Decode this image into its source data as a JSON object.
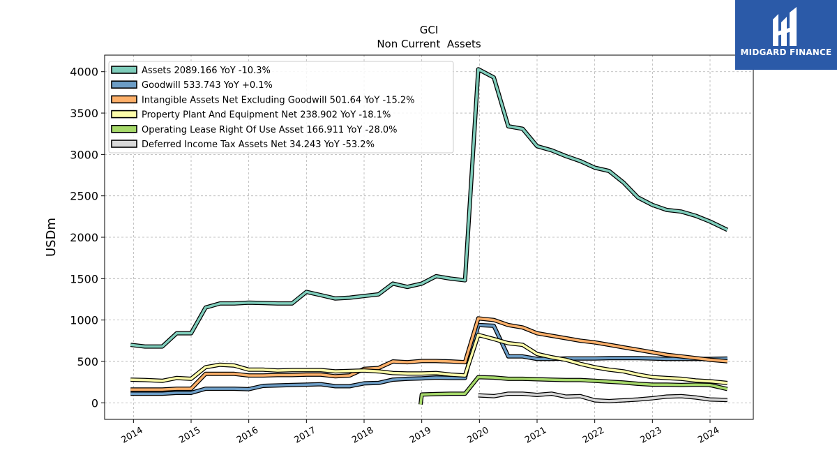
{
  "brand": {
    "name": "MIDGARD FINANCE",
    "bg_color": "#2b5aa8"
  },
  "chart_data": {
    "type": "line",
    "title": "GCI",
    "subtitle": "Non Current  Assets",
    "ylabel": "USDm",
    "xlabel": "",
    "ylim": [
      -200,
      4200
    ],
    "xlim": [
      2013.5,
      2024.75
    ],
    "yticks": [
      0,
      500,
      1000,
      1500,
      2000,
      2500,
      3000,
      3500,
      4000
    ],
    "xticks": [
      2014,
      2015,
      2016,
      2017,
      2018,
      2019,
      2020,
      2021,
      2022,
      2023,
      2024
    ],
    "grid": true,
    "legend_position": "top-left",
    "series": [
      {
        "name": "Assets  2089.166 YoY -10.3%",
        "color": "#7fcdbb",
        "points": [
          [
            2013.95,
            700
          ],
          [
            2014.2,
            680
          ],
          [
            2014.5,
            680
          ],
          [
            2014.75,
            840
          ],
          [
            2015.0,
            840
          ],
          [
            2015.25,
            1150
          ],
          [
            2015.5,
            1200
          ],
          [
            2015.75,
            1200
          ],
          [
            2016.0,
            1210
          ],
          [
            2016.25,
            1205
          ],
          [
            2016.5,
            1200
          ],
          [
            2016.75,
            1200
          ],
          [
            2017.0,
            1340
          ],
          [
            2017.25,
            1300
          ],
          [
            2017.5,
            1260
          ],
          [
            2017.75,
            1270
          ],
          [
            2018.0,
            1290
          ],
          [
            2018.25,
            1310
          ],
          [
            2018.5,
            1440
          ],
          [
            2018.75,
            1400
          ],
          [
            2019.0,
            1440
          ],
          [
            2019.25,
            1530
          ],
          [
            2019.5,
            1500
          ],
          [
            2019.75,
            1480
          ],
          [
            2019.98,
            4030
          ],
          [
            2020.25,
            3930
          ],
          [
            2020.5,
            3340
          ],
          [
            2020.75,
            3310
          ],
          [
            2021.0,
            3100
          ],
          [
            2021.25,
            3050
          ],
          [
            2021.5,
            2980
          ],
          [
            2021.75,
            2920
          ],
          [
            2022.0,
            2840
          ],
          [
            2022.25,
            2800
          ],
          [
            2022.5,
            2660
          ],
          [
            2022.75,
            2480
          ],
          [
            2023.0,
            2390
          ],
          [
            2023.25,
            2330
          ],
          [
            2023.5,
            2310
          ],
          [
            2023.75,
            2260
          ],
          [
            2024.0,
            2190
          ],
          [
            2024.3,
            2089
          ]
        ]
      },
      {
        "name": "Goodwill  533.743 YoY +0.1%",
        "color": "#6c9dc6",
        "points": [
          [
            2013.95,
            110
          ],
          [
            2014.5,
            110
          ],
          [
            2014.75,
            120
          ],
          [
            2015.0,
            120
          ],
          [
            2015.25,
            170
          ],
          [
            2015.5,
            170
          ],
          [
            2015.75,
            170
          ],
          [
            2016.0,
            165
          ],
          [
            2016.25,
            205
          ],
          [
            2016.5,
            210
          ],
          [
            2016.75,
            215
          ],
          [
            2017.0,
            220
          ],
          [
            2017.25,
            225
          ],
          [
            2017.5,
            200
          ],
          [
            2017.75,
            200
          ],
          [
            2018.0,
            235
          ],
          [
            2018.25,
            240
          ],
          [
            2018.5,
            280
          ],
          [
            2018.75,
            290
          ],
          [
            2019.0,
            295
          ],
          [
            2019.25,
            305
          ],
          [
            2019.5,
            300
          ],
          [
            2019.75,
            300
          ],
          [
            2019.98,
            940
          ],
          [
            2020.25,
            930
          ],
          [
            2020.5,
            560
          ],
          [
            2020.75,
            560
          ],
          [
            2021.0,
            530
          ],
          [
            2021.25,
            530
          ],
          [
            2021.5,
            535
          ],
          [
            2021.75,
            535
          ],
          [
            2022.0,
            535
          ],
          [
            2022.25,
            540
          ],
          [
            2022.5,
            540
          ],
          [
            2022.75,
            540
          ],
          [
            2023.0,
            535
          ],
          [
            2023.25,
            530
          ],
          [
            2023.5,
            530
          ],
          [
            2023.75,
            530
          ],
          [
            2024.0,
            530
          ],
          [
            2024.3,
            534
          ]
        ]
      },
      {
        "name": "Intangible Assets Net Excluding Goodwill  501.64 YoY -15.2%",
        "color": "#fdb06a",
        "points": [
          [
            2013.95,
            160
          ],
          [
            2014.5,
            160
          ],
          [
            2014.75,
            170
          ],
          [
            2015.0,
            170
          ],
          [
            2015.25,
            350
          ],
          [
            2015.5,
            350
          ],
          [
            2015.75,
            350
          ],
          [
            2016.0,
            330
          ],
          [
            2016.25,
            330
          ],
          [
            2016.5,
            335
          ],
          [
            2016.75,
            335
          ],
          [
            2017.0,
            340
          ],
          [
            2017.25,
            340
          ],
          [
            2017.5,
            320
          ],
          [
            2017.75,
            330
          ],
          [
            2018.0,
            410
          ],
          [
            2018.25,
            420
          ],
          [
            2018.5,
            500
          ],
          [
            2018.75,
            490
          ],
          [
            2019.0,
            505
          ],
          [
            2019.25,
            505
          ],
          [
            2019.5,
            500
          ],
          [
            2019.75,
            490
          ],
          [
            2019.98,
            1020
          ],
          [
            2020.25,
            1000
          ],
          [
            2020.5,
            940
          ],
          [
            2020.75,
            910
          ],
          [
            2021.0,
            840
          ],
          [
            2021.25,
            810
          ],
          [
            2021.5,
            780
          ],
          [
            2021.75,
            750
          ],
          [
            2022.0,
            730
          ],
          [
            2022.25,
            700
          ],
          [
            2022.5,
            670
          ],
          [
            2022.75,
            640
          ],
          [
            2023.0,
            610
          ],
          [
            2023.25,
            580
          ],
          [
            2023.5,
            560
          ],
          [
            2023.75,
            540
          ],
          [
            2024.0,
            520
          ],
          [
            2024.3,
            502
          ]
        ]
      },
      {
        "name": "Property Plant And Equipment Net  238.902 YoY -18.1%",
        "color": "#fdfdaa",
        "points": [
          [
            2013.95,
            280
          ],
          [
            2014.2,
            275
          ],
          [
            2014.5,
            265
          ],
          [
            2014.75,
            300
          ],
          [
            2015.0,
            290
          ],
          [
            2015.25,
            430
          ],
          [
            2015.5,
            460
          ],
          [
            2015.75,
            450
          ],
          [
            2016.0,
            400
          ],
          [
            2016.25,
            400
          ],
          [
            2016.5,
            390
          ],
          [
            2016.75,
            395
          ],
          [
            2017.0,
            395
          ],
          [
            2017.25,
            395
          ],
          [
            2017.5,
            380
          ],
          [
            2017.75,
            385
          ],
          [
            2018.0,
            390
          ],
          [
            2018.25,
            380
          ],
          [
            2018.5,
            360
          ],
          [
            2018.75,
            355
          ],
          [
            2019.0,
            355
          ],
          [
            2019.25,
            360
          ],
          [
            2019.5,
            340
          ],
          [
            2019.75,
            330
          ],
          [
            2019.98,
            820
          ],
          [
            2020.25,
            770
          ],
          [
            2020.5,
            720
          ],
          [
            2020.75,
            700
          ],
          [
            2021.0,
            590
          ],
          [
            2021.25,
            550
          ],
          [
            2021.5,
            520
          ],
          [
            2021.75,
            470
          ],
          [
            2022.0,
            430
          ],
          [
            2022.25,
            400
          ],
          [
            2022.5,
            380
          ],
          [
            2022.75,
            340
          ],
          [
            2023.0,
            310
          ],
          [
            2023.25,
            300
          ],
          [
            2023.5,
            290
          ],
          [
            2023.75,
            270
          ],
          [
            2024.0,
            260
          ],
          [
            2024.3,
            239
          ]
        ]
      },
      {
        "name": "Operating Lease Right Of Use Asset  166.911 YoY -28.0%",
        "color": "#a6d96a",
        "points": [
          [
            2018.98,
            -20
          ],
          [
            2019.0,
            100
          ],
          [
            2019.25,
            105
          ],
          [
            2019.5,
            110
          ],
          [
            2019.75,
            110
          ],
          [
            2019.98,
            310
          ],
          [
            2020.25,
            305
          ],
          [
            2020.5,
            290
          ],
          [
            2020.75,
            290
          ],
          [
            2021.0,
            285
          ],
          [
            2021.25,
            280
          ],
          [
            2021.5,
            275
          ],
          [
            2021.75,
            275
          ],
          [
            2022.0,
            265
          ],
          [
            2022.25,
            255
          ],
          [
            2022.5,
            245
          ],
          [
            2022.75,
            230
          ],
          [
            2023.0,
            220
          ],
          [
            2023.25,
            220
          ],
          [
            2023.5,
            215
          ],
          [
            2023.75,
            220
          ],
          [
            2024.0,
            215
          ],
          [
            2024.3,
            167
          ]
        ]
      },
      {
        "name": "Deferred Income Tax Assets Net  34.243 YoY -53.2%",
        "color": "#d9d9d9",
        "points": [
          [
            2019.98,
            90
          ],
          [
            2020.25,
            80
          ],
          [
            2020.5,
            110
          ],
          [
            2020.75,
            110
          ],
          [
            2021.0,
            95
          ],
          [
            2021.25,
            110
          ],
          [
            2021.5,
            75
          ],
          [
            2021.75,
            80
          ],
          [
            2022.0,
            30
          ],
          [
            2022.25,
            20
          ],
          [
            2022.5,
            30
          ],
          [
            2022.75,
            40
          ],
          [
            2023.0,
            55
          ],
          [
            2023.25,
            75
          ],
          [
            2023.5,
            80
          ],
          [
            2023.75,
            65
          ],
          [
            2024.0,
            40
          ],
          [
            2024.3,
            34
          ]
        ]
      }
    ]
  }
}
